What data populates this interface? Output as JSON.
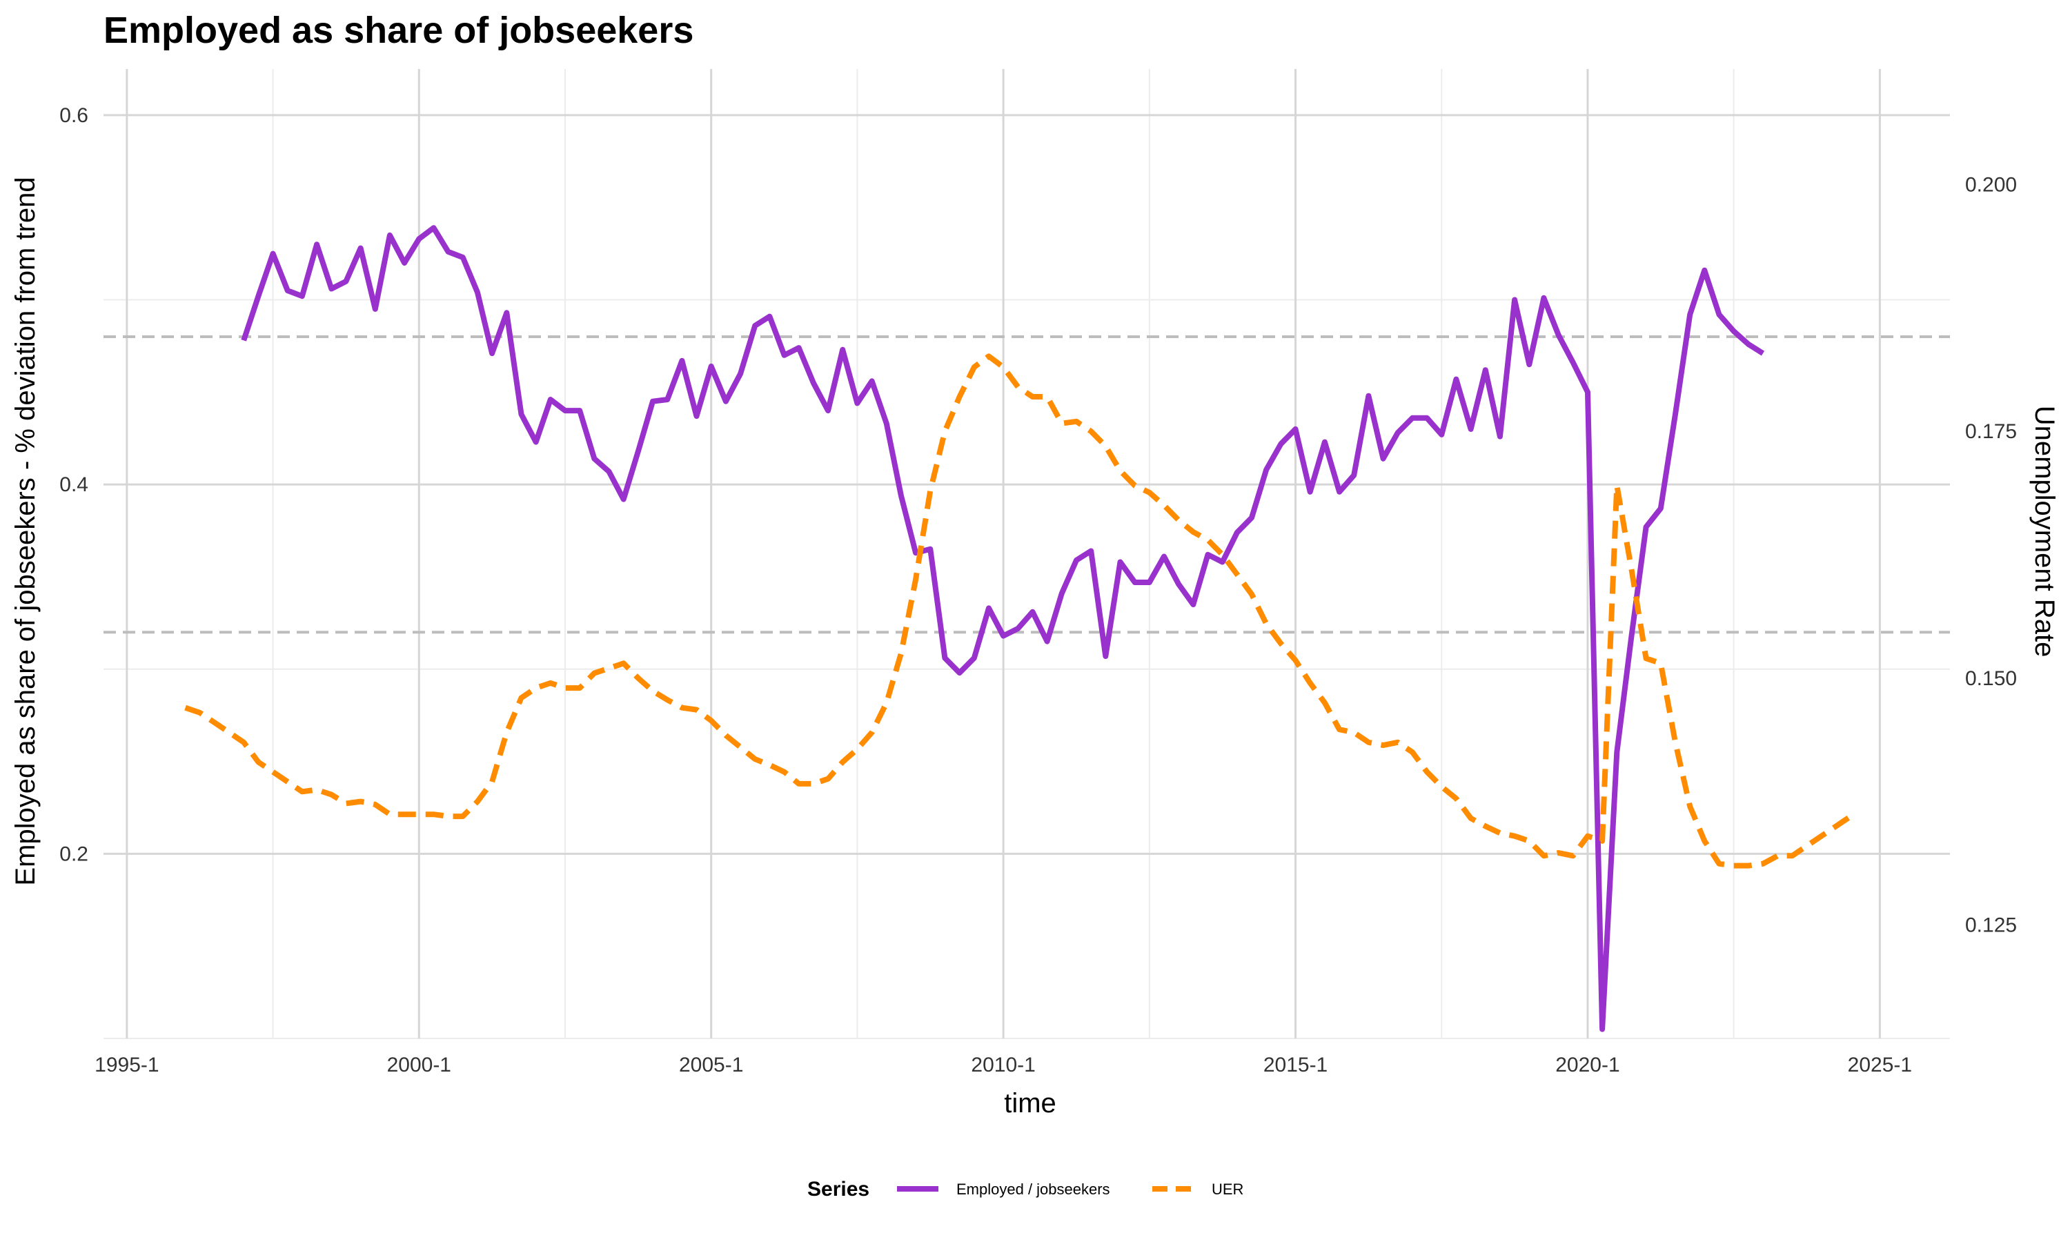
{
  "chart_data": {
    "type": "line",
    "title": "Employed as share of jobseekers",
    "xlabel": "time",
    "ylabel_left": "Employed as share of jobseekers - % deviation from trend",
    "ylabel_right": "Unemployment Rate",
    "x_ticks": [
      "1995-1",
      "2000-1",
      "2005-1",
      "2010-1",
      "2015-1",
      "2020-1",
      "2025-1"
    ],
    "x_tick_values": [
      1995,
      2000,
      2005,
      2010,
      2015,
      2020,
      2025
    ],
    "xlim": [
      1994.6,
      2026.2
    ],
    "y_left_ticks": [
      "0.2",
      "0.4",
      "0.6"
    ],
    "y_left_tick_values": [
      0.2,
      0.4,
      0.6
    ],
    "ylim_left": [
      0.1,
      0.625
    ],
    "y_right_ticks": [
      "0.125",
      "0.150",
      "0.175",
      "0.200"
    ],
    "y_right_tick_values": [
      0.125,
      0.15,
      0.175,
      0.2
    ],
    "ylim_right": [
      0.1135,
      0.2117
    ],
    "reference_lines_left": [
      0.48,
      0.32
    ],
    "grid": true,
    "legend": {
      "title": "Series",
      "position": "bottom"
    },
    "series": [
      {
        "name": "Employed / jobseekers",
        "axis": "left",
        "color": "#9932CC",
        "dash": "solid",
        "x": [
          1997.0,
          1997.25,
          1997.5,
          1997.75,
          1998.0,
          1998.25,
          1998.5,
          1998.75,
          1999.0,
          1999.25,
          1999.5,
          1999.75,
          2000.0,
          2000.25,
          2000.5,
          2000.75,
          2001.0,
          2001.25,
          2001.5,
          2001.75,
          2002.0,
          2002.25,
          2002.5,
          2002.75,
          2003.0,
          2003.25,
          2003.5,
          2003.75,
          2004.0,
          2004.25,
          2004.5,
          2004.75,
          2005.0,
          2005.25,
          2005.5,
          2005.75,
          2006.0,
          2006.25,
          2006.5,
          2006.75,
          2007.0,
          2007.25,
          2007.5,
          2007.75,
          2008.0,
          2008.25,
          2008.5,
          2008.75,
          2009.0,
          2009.25,
          2009.5,
          2009.75,
          2010.0,
          2010.25,
          2010.5,
          2010.75,
          2011.0,
          2011.25,
          2011.5,
          2011.75,
          2012.0,
          2012.25,
          2012.5,
          2012.75,
          2013.0,
          2013.25,
          2013.5,
          2013.75,
          2014.0,
          2014.25,
          2014.5,
          2014.75,
          2015.0,
          2015.25,
          2015.5,
          2015.75,
          2016.0,
          2016.25,
          2016.5,
          2016.75,
          2017.0,
          2017.25,
          2017.5,
          2017.75,
          2018.0,
          2018.25,
          2018.5,
          2018.75,
          2019.0,
          2019.25,
          2019.5,
          2019.75,
          2020.0,
          2020.25,
          2020.5,
          2020.75,
          2021.0,
          2021.25,
          2021.5,
          2021.75,
          2022.0,
          2022.25,
          2022.5,
          2022.75,
          2023.0
        ],
        "values": [
          0.478,
          0.502,
          0.525,
          0.505,
          0.502,
          0.53,
          0.506,
          0.51,
          0.528,
          0.495,
          0.535,
          0.52,
          0.533,
          0.539,
          0.526,
          0.523,
          0.504,
          0.471,
          0.493,
          0.438,
          0.423,
          0.446,
          0.44,
          0.44,
          0.414,
          0.407,
          0.392,
          0.418,
          0.445,
          0.446,
          0.467,
          0.437,
          0.464,
          0.445,
          0.46,
          0.486,
          0.491,
          0.47,
          0.474,
          0.455,
          0.44,
          0.473,
          0.444,
          0.456,
          0.433,
          0.394,
          0.363,
          0.365,
          0.306,
          0.298,
          0.306,
          0.333,
          0.318,
          0.322,
          0.331,
          0.315,
          0.341,
          0.359,
          0.364,
          0.307,
          0.358,
          0.347,
          0.347,
          0.361,
          0.346,
          0.335,
          0.362,
          0.358,
          0.374,
          0.382,
          0.408,
          0.422,
          0.43,
          0.396,
          0.423,
          0.396,
          0.405,
          0.448,
          0.414,
          0.428,
          0.436,
          0.436,
          0.427,
          0.457,
          0.43,
          0.462,
          0.426,
          0.5,
          0.465,
          0.501,
          0.481,
          0.466,
          0.45,
          0.105,
          0.255,
          0.318,
          0.377,
          0.387,
          0.438,
          0.492,
          0.516,
          0.492,
          0.483,
          0.476,
          0.471
        ]
      },
      {
        "name": "UER",
        "axis": "right",
        "color": "#FF8C00",
        "dash": "dashed",
        "x": [
          1996.0,
          1996.25,
          1996.5,
          1996.75,
          1997.0,
          1997.25,
          1997.5,
          1997.75,
          1998.0,
          1998.25,
          1998.5,
          1998.75,
          1999.0,
          1999.25,
          1999.5,
          1999.75,
          2000.0,
          2000.25,
          2000.5,
          2000.75,
          2001.0,
          2001.25,
          2001.5,
          2001.75,
          2002.0,
          2002.25,
          2002.5,
          2002.75,
          2003.0,
          2003.25,
          2003.5,
          2003.75,
          2004.0,
          2004.25,
          2004.5,
          2004.75,
          2005.0,
          2005.25,
          2005.5,
          2005.75,
          2006.0,
          2006.25,
          2006.5,
          2006.75,
          2007.0,
          2007.25,
          2007.5,
          2007.75,
          2008.0,
          2008.25,
          2008.5,
          2008.75,
          2009.0,
          2009.25,
          2009.5,
          2009.75,
          2010.0,
          2010.25,
          2010.5,
          2010.75,
          2011.0,
          2011.25,
          2011.5,
          2011.75,
          2012.0,
          2012.25,
          2012.5,
          2012.75,
          2013.0,
          2013.25,
          2013.5,
          2013.75,
          2014.0,
          2014.25,
          2014.5,
          2014.75,
          2015.0,
          2015.25,
          2015.5,
          2015.75,
          2016.0,
          2016.25,
          2016.5,
          2016.75,
          2017.0,
          2017.25,
          2017.5,
          2017.75,
          2018.0,
          2018.25,
          2018.5,
          2018.75,
          2019.0,
          2019.25,
          2019.5,
          2019.75,
          2020.0,
          2020.25,
          2020.5,
          2020.75,
          2021.0,
          2021.25,
          2021.5,
          2021.75,
          2022.0,
          2022.25,
          2022.5,
          2022.75,
          2023.0,
          2023.25,
          2023.5,
          2023.75,
          2024.0,
          2024.25,
          2024.5
        ],
        "values": [
          0.147,
          0.1465,
          0.1455,
          0.1445,
          0.1435,
          0.1415,
          0.1405,
          0.1395,
          0.1385,
          0.1387,
          0.1382,
          0.1373,
          0.1375,
          0.1372,
          0.1362,
          0.1362,
          0.1362,
          0.1362,
          0.136,
          0.136,
          0.1375,
          0.1395,
          0.1445,
          0.148,
          0.149,
          0.1495,
          0.149,
          0.149,
          0.1505,
          0.151,
          0.1515,
          0.15,
          0.1487,
          0.1478,
          0.147,
          0.1468,
          0.1457,
          0.1442,
          0.143,
          0.1418,
          0.1412,
          0.1405,
          0.1393,
          0.1393,
          0.1398,
          0.1415,
          0.1428,
          0.1445,
          0.1475,
          0.1525,
          0.16,
          0.169,
          0.175,
          0.1785,
          0.1815,
          0.1826,
          0.1815,
          0.1795,
          0.1785,
          0.1785,
          0.1758,
          0.176,
          0.175,
          0.1735,
          0.171,
          0.1695,
          0.1688,
          0.1675,
          0.166,
          0.1648,
          0.164,
          0.1625,
          0.1605,
          0.1585,
          0.1555,
          0.1535,
          0.1518,
          0.1495,
          0.1475,
          0.1448,
          0.1445,
          0.1435,
          0.1432,
          0.1435,
          0.1425,
          0.1405,
          0.139,
          0.1378,
          0.1358,
          0.135,
          0.1343,
          0.134,
          0.1335,
          0.132,
          0.1323,
          0.132,
          0.134,
          0.1335,
          0.1695,
          0.161,
          0.152,
          0.1515,
          0.1435,
          0.137,
          0.1335,
          0.1312,
          0.131,
          0.131,
          0.1312,
          0.132,
          0.132,
          0.133,
          0.134,
          0.135,
          0.136
        ]
      }
    ]
  }
}
